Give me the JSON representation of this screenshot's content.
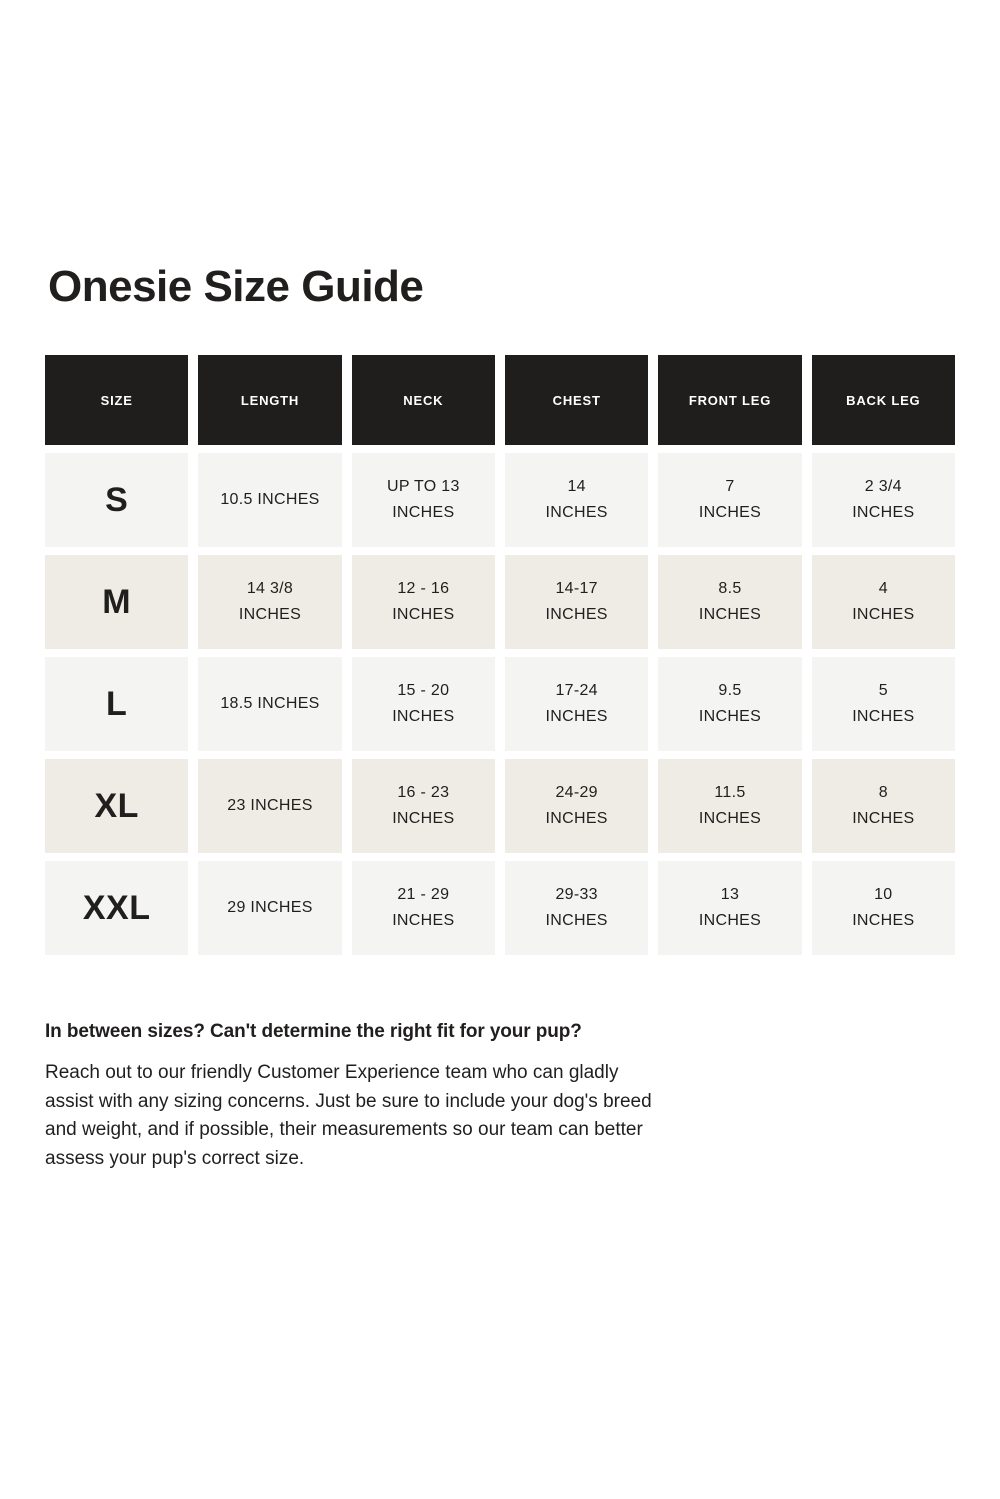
{
  "title": "Onesie Size Guide",
  "table": {
    "headers": [
      "SIZE",
      "LENGTH",
      "NECK",
      "CHEST",
      "FRONT LEG",
      "BACK LEG"
    ],
    "rows": [
      {
        "size": "S",
        "length": "10.5 INCHES",
        "neck": "UP TO 13\nINCHES",
        "chest": "14\nINCHES",
        "front_leg": "7\nINCHES",
        "back_leg": "2 3/4\nINCHES"
      },
      {
        "size": "M",
        "length": "14 3/8\nINCHES",
        "neck": "12 - 16\nINCHES",
        "chest": "14-17\nINCHES",
        "front_leg": "8.5\nINCHES",
        "back_leg": "4\nINCHES"
      },
      {
        "size": "L",
        "length": "18.5 INCHES",
        "neck": "15 - 20\nINCHES",
        "chest": "17-24\nINCHES",
        "front_leg": "9.5\nINCHES",
        "back_leg": "5\nINCHES"
      },
      {
        "size": "XL",
        "length": "23 INCHES",
        "neck": "16 - 23\nINCHES",
        "chest": "24-29\nINCHES",
        "front_leg": "11.5\nINCHES",
        "back_leg": "8\nINCHES"
      },
      {
        "size": "XXL",
        "length": "29 INCHES",
        "neck": "21 - 29\nINCHES",
        "chest": "29-33\nINCHES",
        "front_leg": "13\nINCHES",
        "back_leg": "10\nINCHES"
      }
    ]
  },
  "help": {
    "heading": "In between sizes? Can't determine the right fit for your pup?",
    "body": "Reach out to our friendly Customer Experience team who can gladly assist with any sizing concerns. Just be sure to include your dog's breed and weight, and if possible, their measurements so our team can better assess your pup's correct size."
  },
  "colors": {
    "header_bg": "#201d1d",
    "row_light_bg": "#f4f4f2",
    "row_beige_bg": "#efece5",
    "text": "#211f1e",
    "page_bg": "#ffffff"
  }
}
